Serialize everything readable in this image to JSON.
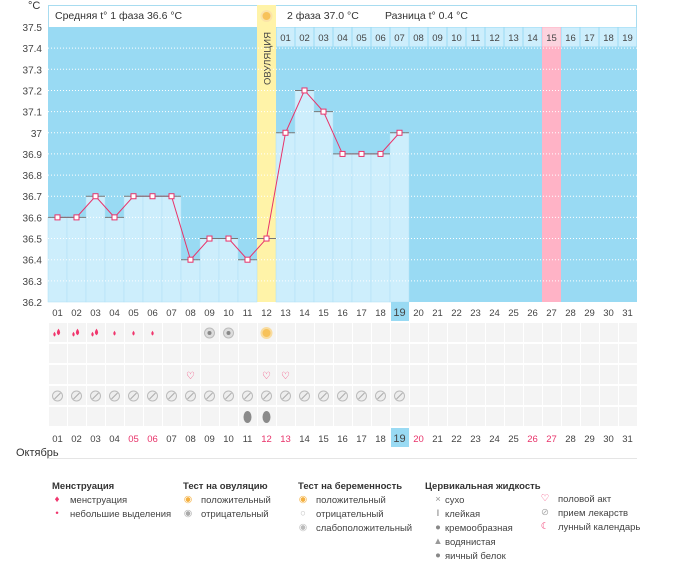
{
  "unit": "°C",
  "header": {
    "phase1": "Средняя t° 1 фаза 36.6 °C",
    "phase2": "2 фаза 37.0 °C",
    "diff": "Разница t° 0.4 °C"
  },
  "ovulation_label": "ОВУЛЯЦИЯ",
  "month": "Октябрь",
  "colors": {
    "plot_bg": "#99daf3",
    "bar": "#cdeefc",
    "line": "#e8336a",
    "ovulation": "#fff3a8",
    "highlight": "#ffb3c6",
    "today": "#99daf3",
    "weekend": "#e8336a"
  },
  "chart_data": {
    "type": "line",
    "ylim": [
      36.2,
      37.5
    ],
    "yticks": [
      "37.5",
      "37.4",
      "37.3",
      "37.2",
      "37.1",
      "37",
      "36.9",
      "36.8",
      "36.7",
      "36.6",
      "36.5",
      "36.4",
      "36.3",
      "36.2"
    ],
    "days": [
      "01",
      "02",
      "03",
      "04",
      "05",
      "06",
      "07",
      "08",
      "09",
      "10",
      "11",
      "12",
      "13",
      "14",
      "15",
      "16",
      "17",
      "18",
      "19",
      "20",
      "21",
      "22",
      "23",
      "24",
      "25",
      "26",
      "27",
      "28",
      "29",
      "30",
      "31"
    ],
    "temps": [
      36.6,
      36.6,
      36.7,
      36.6,
      36.7,
      36.7,
      36.7,
      36.4,
      36.5,
      36.5,
      36.4,
      36.5,
      37.0,
      37.2,
      37.1,
      36.9,
      36.9,
      36.9,
      37.0
    ],
    "ovulation_day": 12,
    "cycle_days": [
      "01",
      "02",
      "03",
      "04",
      "05",
      "06",
      "07",
      "08",
      "09",
      "10",
      "11",
      "12",
      "13",
      "14",
      "15",
      "16",
      "17",
      "18",
      "19"
    ],
    "cycle_highlight": "15",
    "today": 19,
    "weekends": [
      5,
      6,
      12,
      13,
      20,
      26,
      27
    ]
  },
  "marks": {
    "menstruation": [
      1,
      2,
      3
    ],
    "light_spotting": [
      4,
      5,
      6
    ],
    "ovulation_test_negative": [
      9,
      10
    ],
    "ovulation_test_positive": [
      12
    ],
    "intercourse": [
      8,
      12,
      13
    ],
    "medication": [
      1,
      2,
      3,
      4,
      5,
      6,
      7,
      8,
      9,
      10,
      11,
      12,
      13,
      14,
      15,
      16,
      17,
      18,
      19
    ],
    "egg_white": [
      11,
      12
    ]
  },
  "legend": [
    {
      "title": "Менструация",
      "items": [
        {
          "icon": "menstruation-icon",
          "label": "менструация"
        },
        {
          "icon": "spotting-icon",
          "label": "небольшие выделения"
        }
      ]
    },
    {
      "title": "Тест на овуляцию",
      "items": [
        {
          "icon": "ovulation-positive-icon",
          "label": "положительный"
        },
        {
          "icon": "ovulation-negative-icon",
          "label": "отрицательный"
        }
      ]
    },
    {
      "title": "Тест на беременность",
      "items": [
        {
          "icon": "pregnancy-positive-icon",
          "label": "положительный"
        },
        {
          "icon": "pregnancy-negative-icon",
          "label": "отрицательный"
        },
        {
          "icon": "pregnancy-weak-icon",
          "label": "слабоположительный"
        }
      ]
    },
    {
      "title": "Цервикальная жидкость",
      "items": [
        {
          "icon": "dry-icon",
          "label": "сухо"
        },
        {
          "icon": "sticky-icon",
          "label": "клейкая"
        },
        {
          "icon": "creamy-icon",
          "label": "кремообразная"
        },
        {
          "icon": "watery-icon",
          "label": "водянистая"
        },
        {
          "icon": "egg-white-icon",
          "label": "яичный белок"
        }
      ]
    },
    {
      "title": "",
      "items": [
        {
          "icon": "heart-icon",
          "label": "половой акт"
        },
        {
          "icon": "pill-icon",
          "label": "прием лекарств"
        },
        {
          "icon": "moon-icon",
          "label": "лунный календарь"
        }
      ]
    }
  ]
}
